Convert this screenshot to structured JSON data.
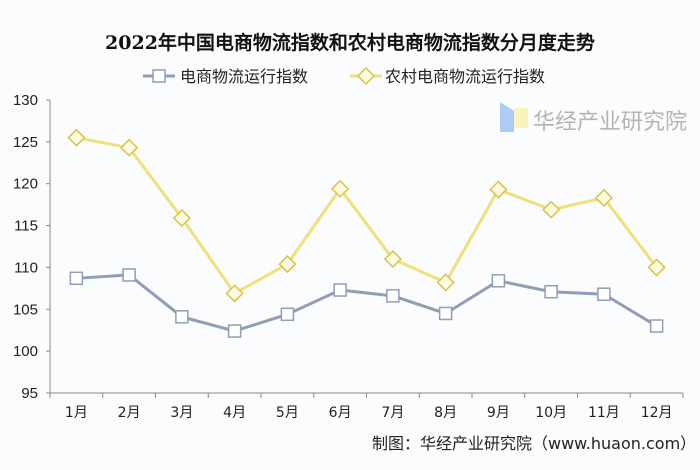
{
  "chart_data": {
    "type": "line",
    "title": "2022年中国电商物流指数和农村电商物流指数分月度走势",
    "categories": [
      "1月",
      "2月",
      "3月",
      "4月",
      "5月",
      "6月",
      "7月",
      "8月",
      "9月",
      "10月",
      "11月",
      "12月"
    ],
    "series": [
      {
        "name": "电商物流运行指数",
        "color": "#8e9fb6",
        "marker": "square",
        "values": [
          108.7,
          109.1,
          104.1,
          102.4,
          104.4,
          107.3,
          106.6,
          104.5,
          108.4,
          107.1,
          106.8,
          103.0
        ]
      },
      {
        "name": "农村电商物流运行指数",
        "color": "#f0e07a",
        "marker": "diamond",
        "values": [
          125.5,
          124.3,
          115.9,
          106.9,
          110.4,
          119.4,
          111.0,
          108.2,
          119.3,
          116.9,
          118.3,
          110.0
        ]
      }
    ],
    "ylim": [
      95,
      130
    ],
    "yticks": [
      95,
      100,
      105,
      110,
      115,
      120,
      125,
      130
    ],
    "grid": false,
    "legend_position": "top"
  },
  "source": "制图：华经产业研究院（www.huaon.com）",
  "watermark": "华经产业研究院"
}
